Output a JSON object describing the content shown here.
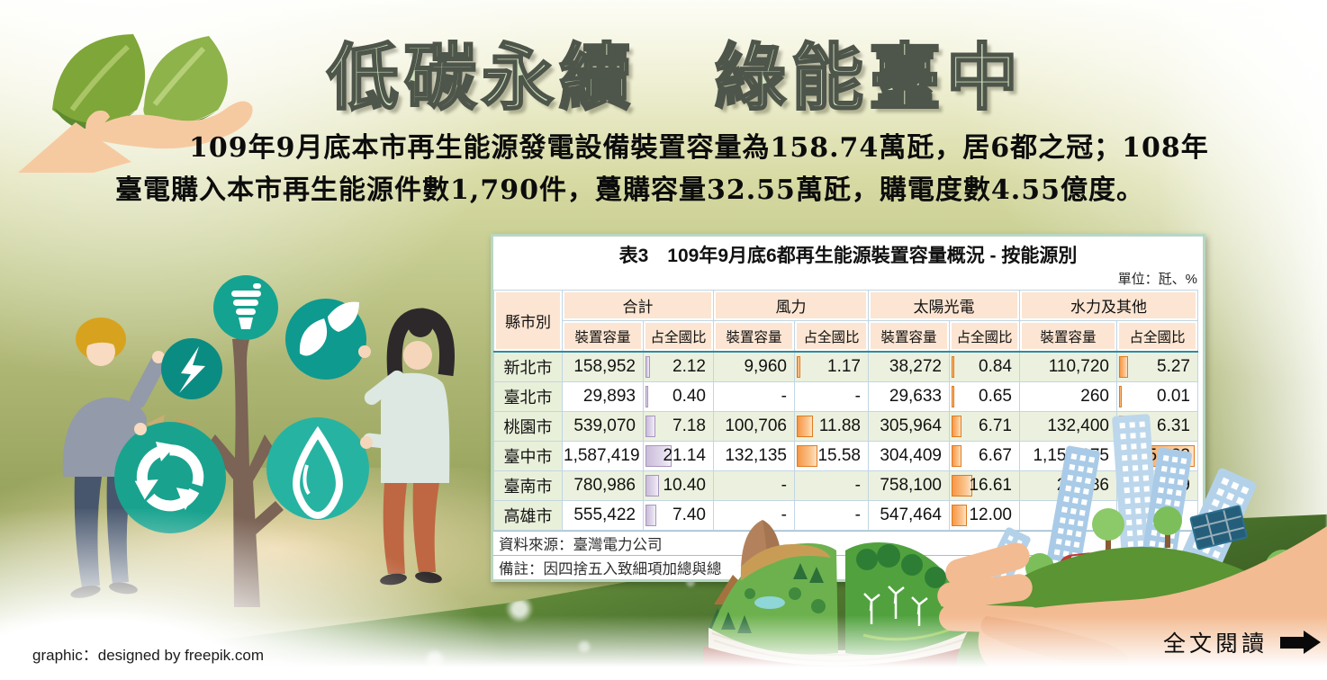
{
  "title": "低碳永續　綠能臺中",
  "intro": "109年9月底本市再生能源發電設備裝置容量為158.74萬瓩，居6都之冠；108年臺電購入本市再生能源件數1,790件，躉購容量32.55萬瓩，購電度數4.55億度。",
  "table": {
    "title": "表3　109年9月底6都再生能源裝置容量概況 - 按能源別",
    "unit": "單位：瓩、%",
    "corner_header": "縣市別",
    "groups": [
      "合計",
      "風力",
      "太陽光電",
      "水力及其他"
    ],
    "sub_headers": [
      "裝置容量",
      "占全國比"
    ],
    "rows": [
      {
        "name": "新北市",
        "values": [
          "158,952",
          "2.12",
          "9,960",
          "1.17",
          "38,272",
          "0.84",
          "110,720",
          "5.27"
        ]
      },
      {
        "name": "臺北市",
        "values": [
          "29,893",
          "0.40",
          "-",
          "-",
          "29,633",
          "0.65",
          "260",
          "0.01"
        ]
      },
      {
        "name": "桃園市",
        "values": [
          "539,070",
          "7.18",
          "100,706",
          "11.88",
          "305,964",
          "6.71",
          "132,400",
          "6.31"
        ]
      },
      {
        "name": "臺中市",
        "values": [
          "1,587,419",
          "21.14",
          "132,135",
          "15.58",
          "304,409",
          "6.67",
          "1,150,875",
          "54.83"
        ]
      },
      {
        "name": "臺南市",
        "values": [
          "780,986",
          "10.40",
          "-",
          "-",
          "758,100",
          "16.61",
          "22,886",
          "1.09"
        ]
      },
      {
        "name": "高雄市",
        "values": [
          "555,422",
          "7.40",
          "-",
          "-",
          "547,464",
          "12.00",
          "",
          ""
        ]
      }
    ],
    "bar_max": 54.83,
    "source": "資料來源：臺灣電力公司",
    "note": "備註：因四捨五入致細項加總與總"
  },
  "credit": "graphic：designed by freepik.com",
  "read_more": {
    "label": "全文閱讀",
    "icon": "arrow-right-icon"
  },
  "icons": {
    "eco_tree": [
      "cfl-bulb-icon",
      "lightning-icon",
      "leaf-icon",
      "recycle-icon",
      "water-drop-icon"
    ],
    "illustrations": [
      "hand-with-leaves",
      "eco-tree-people",
      "open-landscape-book",
      "hand-holding-green-city"
    ]
  },
  "colors": {
    "title_fill": "#cfe0bb",
    "title_outline": "#4e554a",
    "accent_teal": "#18a28e",
    "header_peach": "#fce5d2",
    "band_green": "#ebf1de",
    "bar_orange": "#f79646",
    "bar_lavender": "#c9bcd9",
    "panel_border": "#b7d7c4"
  }
}
